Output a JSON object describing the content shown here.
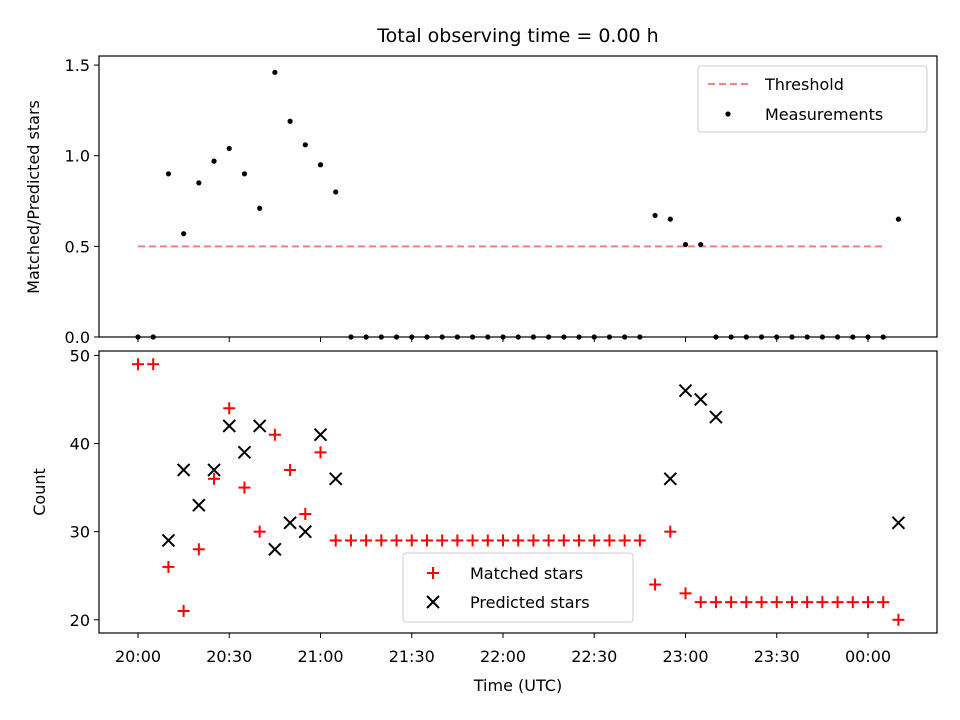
{
  "chart_data": [
    {
      "type": "scatter",
      "title": "Total observing time = 0.00 h",
      "ylabel": "Matched/Predicted stars",
      "ylim": [
        0,
        1.55
      ],
      "yticks": [
        "0.0",
        "0.5",
        "1.0",
        "1.5"
      ],
      "ytick_values": [
        0,
        0.5,
        1.0,
        1.5
      ],
      "threshold": {
        "name": "Threshold",
        "value": 0.5,
        "x_start": "20:00",
        "x_end": "00:05",
        "color": "#ff7f7f",
        "style": "dashed"
      },
      "series": [
        {
          "name": "Measurements",
          "color": "#000000",
          "marker": "dot",
          "x": [
            "20:00",
            "20:05",
            "20:10",
            "20:15",
            "20:20",
            "20:25",
            "20:30",
            "20:35",
            "20:40",
            "20:45",
            "20:50",
            "20:55",
            "21:00",
            "21:05",
            "21:10",
            "21:15",
            "21:20",
            "21:25",
            "21:30",
            "21:35",
            "21:40",
            "21:45",
            "21:50",
            "21:55",
            "22:00",
            "22:05",
            "22:10",
            "22:15",
            "22:20",
            "22:25",
            "22:30",
            "22:35",
            "22:40",
            "22:45",
            "22:50",
            "22:55",
            "23:00",
            "23:05",
            "23:10",
            "23:15",
            "23:20",
            "23:25",
            "23:30",
            "23:35",
            "23:40",
            "23:45",
            "23:50",
            "23:55",
            "00:00",
            "00:05",
            "00:10"
          ],
          "y": [
            0,
            0,
            0.9,
            0.57,
            0.85,
            0.97,
            1.04,
            0.9,
            0.71,
            1.46,
            1.19,
            1.06,
            0.95,
            0.8,
            0,
            0,
            0,
            0,
            0,
            0,
            0,
            0,
            0,
            0,
            0,
            0,
            0,
            0,
            0,
            0,
            0,
            0,
            0,
            0,
            0.67,
            0.65,
            0.51,
            0.51,
            0,
            0,
            0,
            0,
            0,
            0,
            0,
            0,
            0,
            0,
            0,
            0,
            0.65
          ]
        }
      ],
      "legend_position": "upper right"
    },
    {
      "type": "scatter",
      "xlabel": "Time (UTC)",
      "ylabel": "Count",
      "ylim": [
        18.5,
        50.5
      ],
      "yticks": [
        "20",
        "30",
        "40",
        "50"
      ],
      "ytick_values": [
        20,
        30,
        40,
        50
      ],
      "xticks": [
        "20:00",
        "20:30",
        "21:00",
        "21:30",
        "22:00",
        "22:30",
        "23:00",
        "23:30",
        "00:00"
      ],
      "series": [
        {
          "name": "Matched stars",
          "color": "#ff0000",
          "marker": "plus",
          "x": [
            "20:00",
            "20:05",
            "20:10",
            "20:15",
            "20:20",
            "20:25",
            "20:30",
            "20:35",
            "20:40",
            "20:45",
            "20:50",
            "20:55",
            "21:00",
            "21:05",
            "21:10",
            "21:15",
            "21:20",
            "21:25",
            "21:30",
            "21:35",
            "21:40",
            "21:45",
            "21:50",
            "21:55",
            "22:00",
            "22:05",
            "22:10",
            "22:15",
            "22:20",
            "22:25",
            "22:30",
            "22:35",
            "22:40",
            "22:45",
            "22:50",
            "22:55",
            "23:00",
            "23:05",
            "23:10",
            "23:15",
            "23:20",
            "23:25",
            "23:30",
            "23:35",
            "23:40",
            "23:45",
            "23:50",
            "23:55",
            "00:00",
            "00:05",
            "00:10"
          ],
          "y": [
            49,
            49,
            26,
            21,
            28,
            36,
            44,
            35,
            30,
            41,
            37,
            32,
            39,
            29,
            29,
            29,
            29,
            29,
            29,
            29,
            29,
            29,
            29,
            29,
            29,
            29,
            29,
            29,
            29,
            29,
            29,
            29,
            29,
            29,
            24,
            30,
            23,
            22,
            22,
            22,
            22,
            22,
            22,
            22,
            22,
            22,
            22,
            22,
            22,
            22,
            20
          ]
        },
        {
          "name": "Predicted stars",
          "color": "#000000",
          "marker": "x",
          "x": [
            "20:10",
            "20:15",
            "20:20",
            "20:25",
            "20:30",
            "20:35",
            "20:40",
            "20:45",
            "20:50",
            "20:55",
            "21:00",
            "21:05",
            "22:55",
            "23:00",
            "23:05",
            "23:10",
            "00:10"
          ],
          "y": [
            29,
            37,
            33,
            37,
            42,
            39,
            42,
            28,
            31,
            30,
            41,
            36,
            36,
            46,
            45,
            43,
            31
          ]
        }
      ],
      "legend_position": "lower center"
    }
  ]
}
